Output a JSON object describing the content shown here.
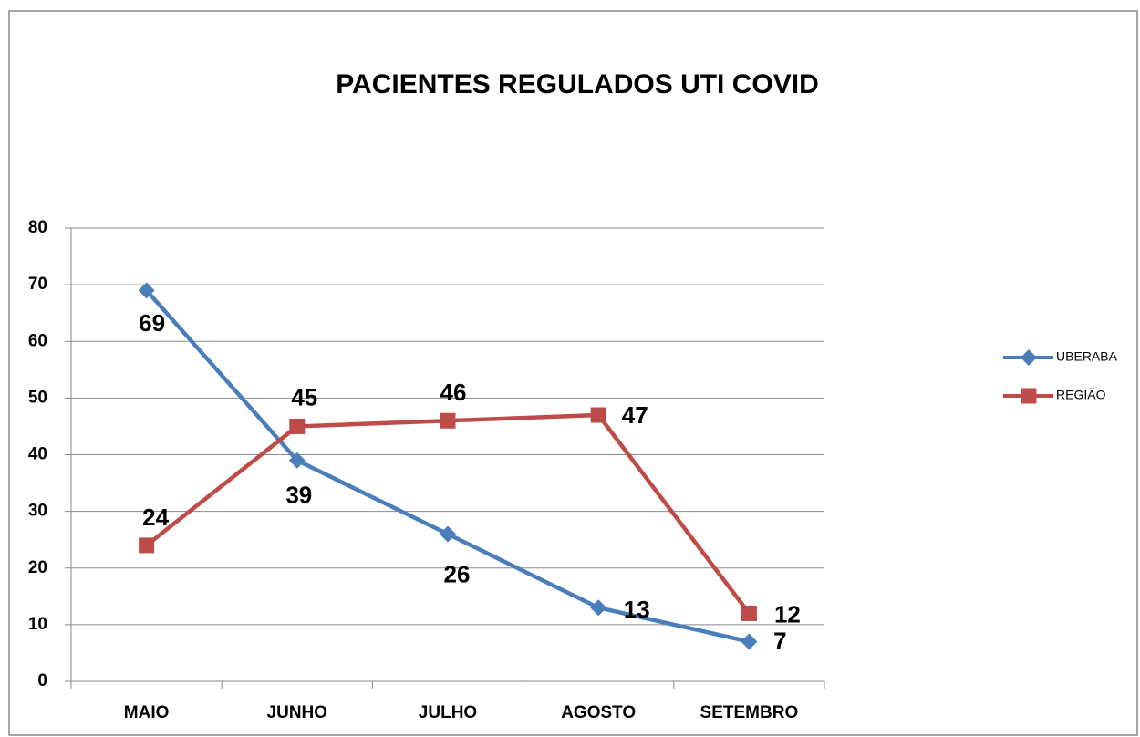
{
  "chart_data": {
    "type": "line",
    "title": "PACIENTES REGULADOS UTI COVID",
    "categories": [
      "MAIO",
      "JUNHO",
      "JULHO",
      "AGOSTO",
      "SETEMBRO"
    ],
    "series": [
      {
        "name": "UBERABA",
        "color": "#4a7ebb",
        "values": [
          69,
          39,
          26,
          13,
          7
        ]
      },
      {
        "name": "REGIÃO",
        "color": "#be4b48",
        "values": [
          24,
          45,
          46,
          47,
          12
        ]
      }
    ],
    "ylim": [
      0,
      80
    ],
    "yticks": [
      0,
      10,
      20,
      30,
      40,
      50,
      60,
      70,
      80
    ],
    "grid": true,
    "legend": "right"
  }
}
